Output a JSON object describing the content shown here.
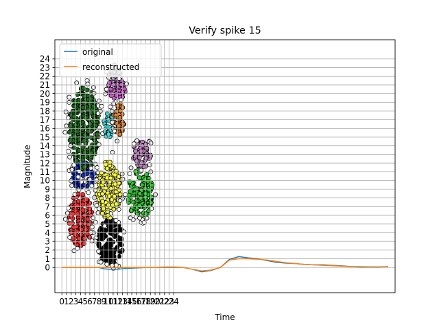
{
  "chart_data": {
    "type": "line",
    "title": "Verify spike 15",
    "xlabel": "Time",
    "ylabel": "Magnitude",
    "xticks": [
      "0",
      "1",
      "2",
      "3",
      "4",
      "5",
      "6",
      "7",
      "8",
      "9",
      "10",
      "11",
      "12",
      "13",
      "14",
      "15",
      "16",
      "17",
      "18",
      "19",
      "20",
      "21",
      "22",
      "23",
      "24"
    ],
    "yticks": [
      "0",
      "1",
      "2",
      "3",
      "4",
      "5",
      "6",
      "7",
      "8",
      "9",
      "10",
      "11",
      "12",
      "13",
      "14",
      "15",
      "16",
      "17",
      "18",
      "19",
      "20",
      "21",
      "22",
      "23",
      "24"
    ],
    "xlim": [
      -1.5,
      71.5
    ],
    "ylim": [
      -2.9,
      26.2
    ],
    "grid": true,
    "legend_position": "upper-left",
    "series": [
      {
        "name": "original",
        "color": "#1f77b4",
        "x": [
          0,
          8,
          9,
          10,
          12,
          14,
          16,
          18,
          20,
          22,
          24,
          26,
          28,
          30,
          32,
          34,
          36,
          38,
          40,
          42,
          44,
          46,
          48,
          50,
          52,
          54,
          56,
          58,
          60,
          62,
          64,
          66,
          68,
          70
        ],
        "y": [
          0,
          0,
          -0.15,
          -0.2,
          -0.2,
          -0.1,
          -0.05,
          0,
          0,
          0.05,
          0.05,
          0,
          -0.2,
          -0.5,
          -0.35,
          0,
          0.95,
          1.25,
          1.1,
          1.0,
          0.8,
          0.6,
          0.5,
          0.45,
          0.35,
          0.3,
          0.3,
          0.25,
          0.2,
          0.1,
          0.05,
          0.05,
          0.05,
          0.1
        ]
      },
      {
        "name": "reconstructed",
        "color": "#ff7f0e",
        "x": [
          0,
          8,
          10,
          12,
          14,
          16,
          18,
          20,
          22,
          24,
          26,
          28,
          30,
          32,
          34,
          36,
          38,
          40,
          42,
          44,
          46,
          48,
          50,
          52,
          54,
          56,
          58,
          60,
          62,
          64,
          66,
          68,
          70
        ],
        "y": [
          0,
          0,
          0,
          0,
          0,
          0,
          0,
          0,
          0,
          0,
          0,
          -0.2,
          -0.4,
          -0.3,
          0,
          0.85,
          1.0,
          1.0,
          0.95,
          0.85,
          0.7,
          0.55,
          0.45,
          0.35,
          0.3,
          0.25,
          0.2,
          0.15,
          0.1,
          0.1,
          0.08,
          0.08,
          0.1
        ]
      }
    ],
    "scatter_clusters": [
      {
        "color": "#000000",
        "cx": 10.5,
        "cy": 3.0,
        "rx": 2.8,
        "ry": 2.6
      },
      {
        "color": "#ff2a2a",
        "cx": 4.0,
        "cy": 5.5,
        "rx": 2.5,
        "ry": 3.2
      },
      {
        "color": "#ffff33",
        "cx": 10.0,
        "cy": 9.0,
        "rx": 2.6,
        "ry": 3.4
      },
      {
        "color": "#1030c0",
        "cx": 4.5,
        "cy": 10.5,
        "rx": 2.6,
        "ry": 1.6
      },
      {
        "color": "#22cc22",
        "cx": 16.8,
        "cy": 8.5,
        "rx": 2.8,
        "ry": 2.8
      },
      {
        "color": "#c080c0",
        "cx": 17.0,
        "cy": 13.0,
        "rx": 2.2,
        "ry": 1.6
      },
      {
        "color": "#1a6e1a",
        "cx": 4.8,
        "cy": 16.0,
        "rx": 3.2,
        "ry": 4.8
      },
      {
        "color": "#33e0e0",
        "cx": 10.0,
        "cy": 16.5,
        "rx": 1.0,
        "ry": 1.6
      },
      {
        "color": "#e08020",
        "cx": 12.2,
        "cy": 17.0,
        "rx": 1.2,
        "ry": 2.0
      },
      {
        "color": "#cc55cc",
        "cx": 11.7,
        "cy": 20.5,
        "rx": 2.0,
        "ry": 1.2
      },
      {
        "color": "#b0a0c0",
        "cx": 11.3,
        "cy": 22.5,
        "rx": 1.4,
        "ry": 0.9
      }
    ]
  }
}
